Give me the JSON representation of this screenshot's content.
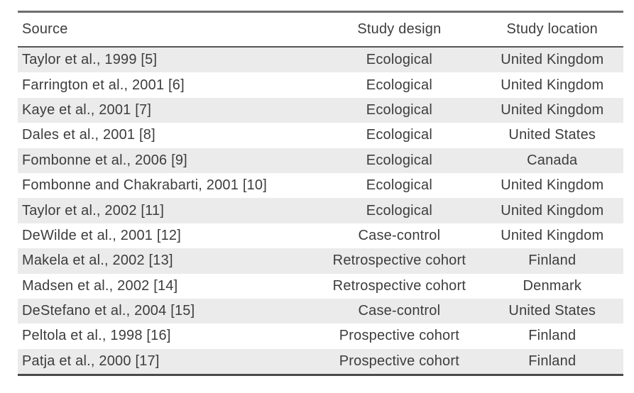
{
  "table": {
    "columns": [
      {
        "label": "Source"
      },
      {
        "label": "Study design"
      },
      {
        "label": "Study location"
      }
    ],
    "rows": [
      {
        "source": "Taylor et al., 1999 [5]",
        "design": "Ecological",
        "location": "United Kingdom"
      },
      {
        "source": "Farrington et al., 2001 [6]",
        "design": "Ecological",
        "location": "United Kingdom"
      },
      {
        "source": "Kaye et al., 2001 [7]",
        "design": "Ecological",
        "location": "United Kingdom"
      },
      {
        "source": "Dales et al., 2001 [8]",
        "design": "Ecological",
        "location": "United States"
      },
      {
        "source": "Fombonne et al., 2006 [9]",
        "design": "Ecological",
        "location": "Canada"
      },
      {
        "source": "Fombonne and Chakrabarti, 2001 [10]",
        "design": "Ecological",
        "location": "United Kingdom"
      },
      {
        "source": "Taylor et al., 2002 [11]",
        "design": "Ecological",
        "location": "United Kingdom"
      },
      {
        "source": "DeWilde et al., 2001 [12]",
        "design": "Case-control",
        "location": "United Kingdom"
      },
      {
        "source": "Makela et al., 2002 [13]",
        "design": "Retrospective cohort",
        "location": "Finland"
      },
      {
        "source": "Madsen et al., 2002 [14]",
        "design": "Retrospective cohort",
        "location": "Denmark"
      },
      {
        "source": "DeStefano et al., 2004 [15]",
        "design": "Case-control",
        "location": "United States"
      },
      {
        "source": "Peltola et al., 1998 [16]",
        "design": "Prospective cohort",
        "location": "Finland"
      },
      {
        "source": "Patja et al., 2000 [17]",
        "design": "Prospective cohort",
        "location": "Finland"
      }
    ],
    "colors": {
      "stripe": "#ebebeb",
      "text": "#3d3d3d",
      "rule_top": "#6e6e6e",
      "rule_header": "#565656",
      "rule_bottom": "#4a4a4a"
    }
  }
}
